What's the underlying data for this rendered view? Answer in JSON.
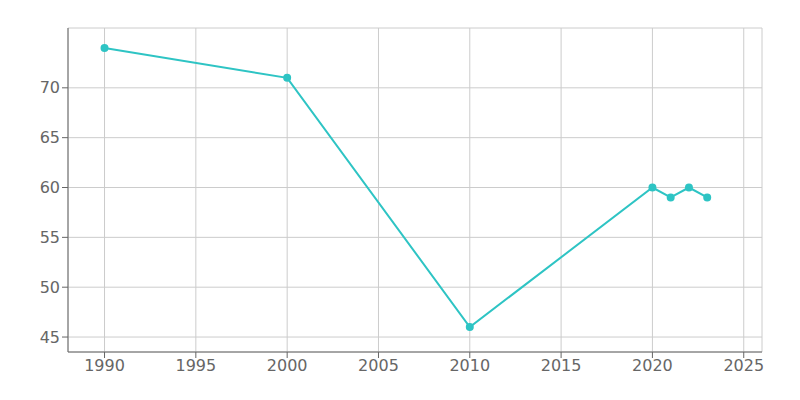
{
  "chart_data": {
    "type": "line",
    "x": [
      1990,
      2000,
      2010,
      2020,
      2021,
      2022,
      2023
    ],
    "values": [
      74,
      71,
      46,
      60,
      59,
      60,
      59
    ],
    "color": "#2EC4C4",
    "marker": "circle",
    "xlim": [
      1988,
      2026
    ],
    "ylim": [
      43.5,
      76
    ],
    "xticks": [
      1990,
      1995,
      2000,
      2005,
      2010,
      2015,
      2020,
      2025
    ],
    "yticks": [
      45,
      50,
      55,
      60,
      65,
      70
    ],
    "grid": true
  }
}
